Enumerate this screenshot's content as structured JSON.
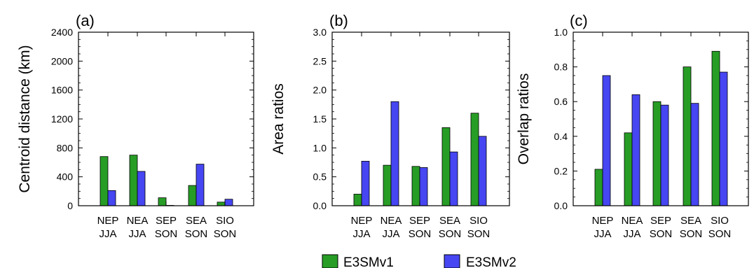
{
  "chart_data": [
    {
      "type": "bar",
      "title": "(a)",
      "ylabel": "Centroid distance (km)",
      "xlabel": "",
      "ylim": [
        0,
        2400
      ],
      "yticks": [
        0,
        400,
        800,
        1200,
        1600,
        2000,
        2400
      ],
      "categories": [
        "NEP JJA",
        "NEA JJA",
        "SEP SON",
        "SEA SON",
        "SIO SON"
      ],
      "category_lines": [
        [
          "NEP",
          "JJA"
        ],
        [
          "NEA",
          "JJA"
        ],
        [
          "SEP",
          "SON"
        ],
        [
          "SEA",
          "SON"
        ],
        [
          "SIO",
          "SON"
        ]
      ],
      "series": [
        {
          "name": "E3SMv1",
          "values": [
            680,
            700,
            110,
            280,
            50
          ]
        },
        {
          "name": "E3SMv2",
          "values": [
            210,
            475,
            5,
            575,
            90
          ]
        }
      ]
    },
    {
      "type": "bar",
      "title": "(b)",
      "ylabel": "Area ratios",
      "xlabel": "",
      "ylim": [
        0,
        3
      ],
      "yticks": [
        "0.0",
        "0.5",
        "1.0",
        "1.5",
        "2.0",
        "2.5",
        "3.0"
      ],
      "categories": [
        "NEP JJA",
        "NEA JJA",
        "SEP SON",
        "SEA SON",
        "SIO SON"
      ],
      "category_lines": [
        [
          "NEP",
          "JJA"
        ],
        [
          "NEA",
          "JJA"
        ],
        [
          "SEP",
          "SON"
        ],
        [
          "SEA",
          "SON"
        ],
        [
          "SIO",
          "SON"
        ]
      ],
      "series": [
        {
          "name": "E3SMv1",
          "values": [
            0.2,
            0.7,
            0.68,
            1.35,
            1.6
          ]
        },
        {
          "name": "E3SMv2",
          "values": [
            0.77,
            1.8,
            0.66,
            0.93,
            1.2
          ]
        }
      ]
    },
    {
      "type": "bar",
      "title": "(c)",
      "ylabel": "Overlap ratios",
      "xlabel": "",
      "ylim": [
        0,
        1
      ],
      "yticks": [
        "0.0",
        "0.2",
        "0.4",
        "0.6",
        "0.8",
        "1.0"
      ],
      "categories": [
        "NEP JJA",
        "NEA JJA",
        "SEP SON",
        "SEA SON",
        "SIO SON"
      ],
      "category_lines": [
        [
          "NEP",
          "JJA"
        ],
        [
          "NEA",
          "JJA"
        ],
        [
          "SEP",
          "SON"
        ],
        [
          "SEA",
          "SON"
        ],
        [
          "SIO",
          "SON"
        ]
      ],
      "series": [
        {
          "name": "E3SMv1",
          "values": [
            0.21,
            0.42,
            0.6,
            0.8,
            0.89
          ]
        },
        {
          "name": "E3SMv2",
          "values": [
            0.75,
            0.64,
            0.58,
            0.59,
            0.77
          ]
        }
      ]
    }
  ],
  "legend": {
    "placement": "bottom-center",
    "entries": [
      {
        "label": "E3SMv1",
        "color": "#2ca02c"
      },
      {
        "label": "E3SMv2",
        "color": "#4747f5"
      }
    ]
  },
  "colors": {
    "E3SMv1": "#279d26",
    "E3SMv2": "#4646f2"
  }
}
